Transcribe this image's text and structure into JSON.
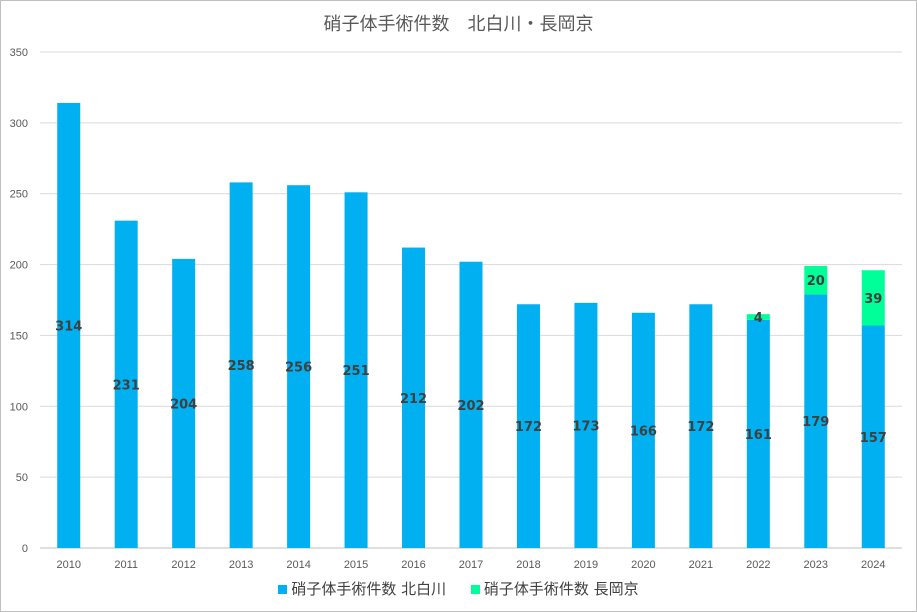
{
  "chart_data": {
    "type": "bar",
    "stacked": true,
    "title": "硝子体手術件数　北白川・長岡京",
    "categories": [
      "2010",
      "2011",
      "2012",
      "2013",
      "2014",
      "2015",
      "2016",
      "2017",
      "2018",
      "2019",
      "2020",
      "2021",
      "2022",
      "2023",
      "2024"
    ],
    "series": [
      {
        "name": "硝子体手術件数 北白川",
        "color": "#00b0f0",
        "values": [
          314,
          231,
          204,
          258,
          256,
          251,
          212,
          202,
          172,
          173,
          166,
          172,
          161,
          179,
          157
        ]
      },
      {
        "name": "硝子体手術件数 長岡京",
        "color": "#00ff99",
        "values": [
          null,
          null,
          null,
          null,
          null,
          null,
          null,
          null,
          null,
          null,
          null,
          null,
          4,
          20,
          39
        ]
      }
    ],
    "ylim": [
      0,
      350
    ],
    "yticks": [
      0,
      50,
      100,
      150,
      200,
      250,
      300,
      350
    ],
    "grid": true,
    "legend_position": "bottom"
  }
}
